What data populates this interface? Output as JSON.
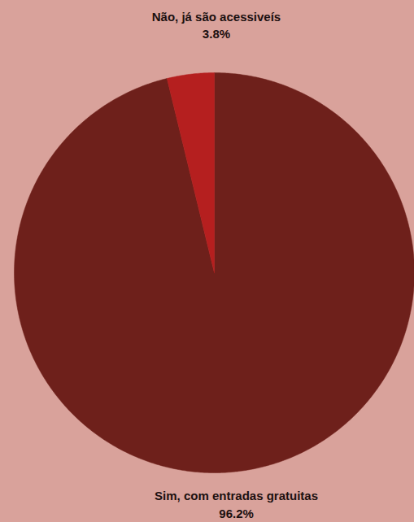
{
  "chart_data": {
    "type": "pie",
    "categories": [
      "Sim, com entradas gratuitas",
      "Não, já são acessiveís"
    ],
    "values": [
      96.2,
      3.8
    ],
    "value_labels": [
      "96.2%",
      "3.8%"
    ],
    "colors": [
      "#6e201b",
      "#b51f1f"
    ],
    "data_labels": true,
    "tick_labels": false
  }
}
